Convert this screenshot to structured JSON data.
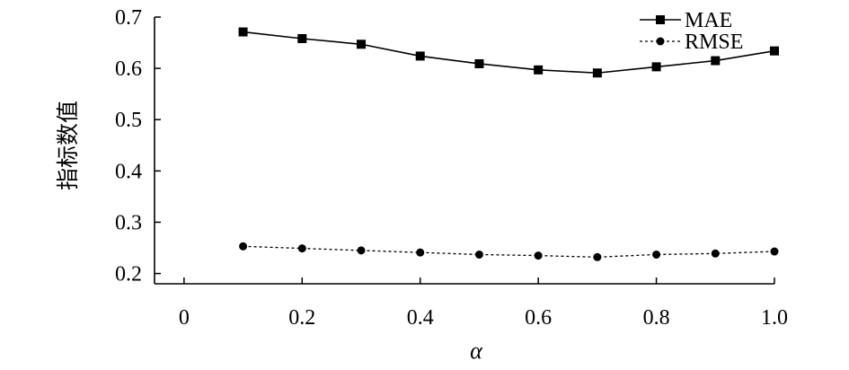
{
  "chart_data": {
    "type": "line",
    "title": "",
    "xlabel": "α",
    "ylabel": "指标数值",
    "x": [
      0.1,
      0.2,
      0.3,
      0.4,
      0.5,
      0.6,
      0.7,
      0.8,
      0.9,
      1.0
    ],
    "xlim": [
      -0.05,
      1.0
    ],
    "ylim": [
      0.18,
      0.7
    ],
    "xticks": [
      0,
      0.2,
      0.4,
      0.6,
      0.8,
      1.0
    ],
    "xtick_labels": [
      "0",
      "0.2",
      "0.4",
      "0.6",
      "0.8",
      "1.0"
    ],
    "yticks": [
      0.2,
      0.3,
      0.4,
      0.5,
      0.6,
      0.7
    ],
    "ytick_labels": [
      "0.2",
      "0.3",
      "0.4",
      "0.5",
      "0.6",
      "0.7"
    ],
    "grid": false,
    "legend_position": "top-right",
    "series": [
      {
        "name": "MAE",
        "line_style": "solid",
        "marker": "square",
        "values": [
          0.671,
          0.658,
          0.647,
          0.624,
          0.609,
          0.597,
          0.591,
          0.603,
          0.615,
          0.634
        ]
      },
      {
        "name": "RMSE",
        "line_style": "dotted",
        "marker": "circle",
        "values": [
          0.253,
          0.249,
          0.245,
          0.241,
          0.237,
          0.235,
          0.232,
          0.237,
          0.239,
          0.243
        ]
      }
    ]
  }
}
